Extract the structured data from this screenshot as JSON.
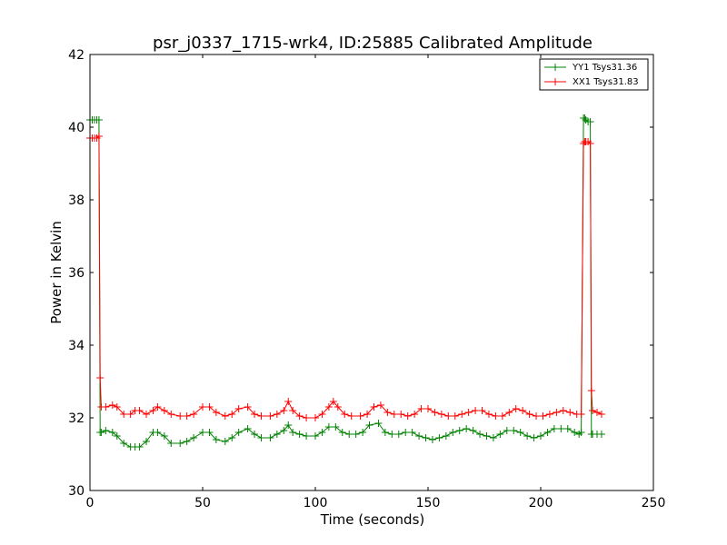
{
  "chart_data": {
    "type": "line",
    "title": "psr_j0337_1715-wrk4, ID:25885 Calibrated Amplitude",
    "xlabel": "Time (seconds)",
    "ylabel": "Power in Kelvin",
    "xlim": [
      0,
      250
    ],
    "ylim": [
      30,
      42
    ],
    "xticks": [
      0,
      50,
      100,
      150,
      200,
      250
    ],
    "yticks": [
      30,
      32,
      34,
      36,
      38,
      40,
      42
    ],
    "grid": false,
    "legend_position": "top-right",
    "series": [
      {
        "name": "YY1 Tsys31.36",
        "color": "#008000",
        "marker": "+",
        "x": [
          0,
          1,
          2,
          3,
          4,
          4.5,
          5,
          7,
          10,
          12,
          15,
          18,
          20,
          22,
          25,
          28,
          30,
          33,
          36,
          40,
          43,
          46,
          50,
          53,
          56,
          60,
          63,
          66,
          70,
          73,
          76,
          80,
          83,
          86,
          88,
          90,
          93,
          96,
          100,
          103,
          106,
          109,
          112,
          115,
          118,
          121,
          124,
          128,
          131,
          134,
          137,
          140,
          143,
          146,
          149,
          152,
          155,
          158,
          161,
          164,
          167,
          170,
          173,
          176,
          179,
          182,
          185,
          188,
          191,
          194,
          197,
          200,
          203,
          206,
          209,
          212,
          215,
          217,
          218,
          219,
          219.5,
          220,
          221,
          222,
          222.5,
          223,
          225,
          227
        ],
        "y": [
          40.2,
          40.2,
          40.2,
          40.2,
          40.2,
          31.6,
          31.6,
          31.65,
          31.6,
          31.5,
          31.3,
          31.2,
          31.2,
          31.2,
          31.35,
          31.6,
          31.6,
          31.5,
          31.3,
          31.3,
          31.35,
          31.45,
          31.6,
          31.6,
          31.4,
          31.35,
          31.45,
          31.6,
          31.7,
          31.55,
          31.45,
          31.45,
          31.55,
          31.65,
          31.8,
          31.6,
          31.55,
          31.5,
          31.5,
          31.6,
          31.75,
          31.75,
          31.6,
          31.55,
          31.55,
          31.6,
          31.8,
          31.85,
          31.6,
          31.55,
          31.55,
          31.6,
          31.6,
          31.5,
          31.45,
          31.4,
          31.45,
          31.5,
          31.6,
          31.65,
          31.7,
          31.65,
          31.55,
          31.5,
          31.45,
          31.55,
          31.65,
          31.65,
          31.6,
          31.5,
          31.45,
          31.5,
          31.6,
          31.7,
          31.7,
          31.7,
          31.6,
          31.55,
          31.6,
          40.25,
          40.25,
          40.2,
          40.15,
          40.15,
          31.55,
          31.55,
          31.55,
          31.55
        ]
      },
      {
        "name": "XX1 Tsys31.83",
        "color": "#ff0000",
        "marker": "+",
        "x": [
          0,
          1,
          2,
          3,
          4,
          4.5,
          5,
          7,
          10,
          12,
          15,
          18,
          20,
          22,
          25,
          28,
          30,
          33,
          36,
          40,
          43,
          46,
          50,
          53,
          56,
          60,
          63,
          66,
          70,
          73,
          76,
          80,
          83,
          86,
          88,
          90,
          93,
          96,
          100,
          103,
          106,
          108,
          110,
          113,
          116,
          120,
          123,
          126,
          129,
          132,
          135,
          138,
          141,
          144,
          147,
          150,
          153,
          156,
          159,
          162,
          165,
          168,
          171,
          174,
          177,
          180,
          183,
          186,
          189,
          192,
          195,
          198,
          201,
          204,
          207,
          210,
          213,
          216,
          218,
          219,
          219.5,
          220,
          221,
          222,
          222.5,
          223,
          225,
          227
        ],
        "y": [
          39.7,
          39.7,
          39.7,
          39.7,
          39.75,
          33.1,
          32.3,
          32.3,
          32.35,
          32.3,
          32.1,
          32.1,
          32.2,
          32.2,
          32.1,
          32.2,
          32.3,
          32.2,
          32.1,
          32.05,
          32.05,
          32.1,
          32.3,
          32.3,
          32.15,
          32.05,
          32.1,
          32.25,
          32.3,
          32.1,
          32.05,
          32.05,
          32.1,
          32.2,
          32.45,
          32.2,
          32.05,
          32.0,
          32.0,
          32.1,
          32.3,
          32.45,
          32.3,
          32.1,
          32.05,
          32.05,
          32.1,
          32.3,
          32.35,
          32.15,
          32.1,
          32.1,
          32.05,
          32.1,
          32.25,
          32.25,
          32.15,
          32.1,
          32.05,
          32.05,
          32.1,
          32.15,
          32.2,
          32.2,
          32.1,
          32.05,
          32.05,
          32.15,
          32.25,
          32.2,
          32.1,
          32.05,
          32.05,
          32.1,
          32.15,
          32.2,
          32.15,
          32.1,
          32.1,
          39.55,
          39.6,
          39.6,
          39.6,
          39.55,
          32.75,
          32.2,
          32.15,
          32.1
        ]
      }
    ]
  }
}
